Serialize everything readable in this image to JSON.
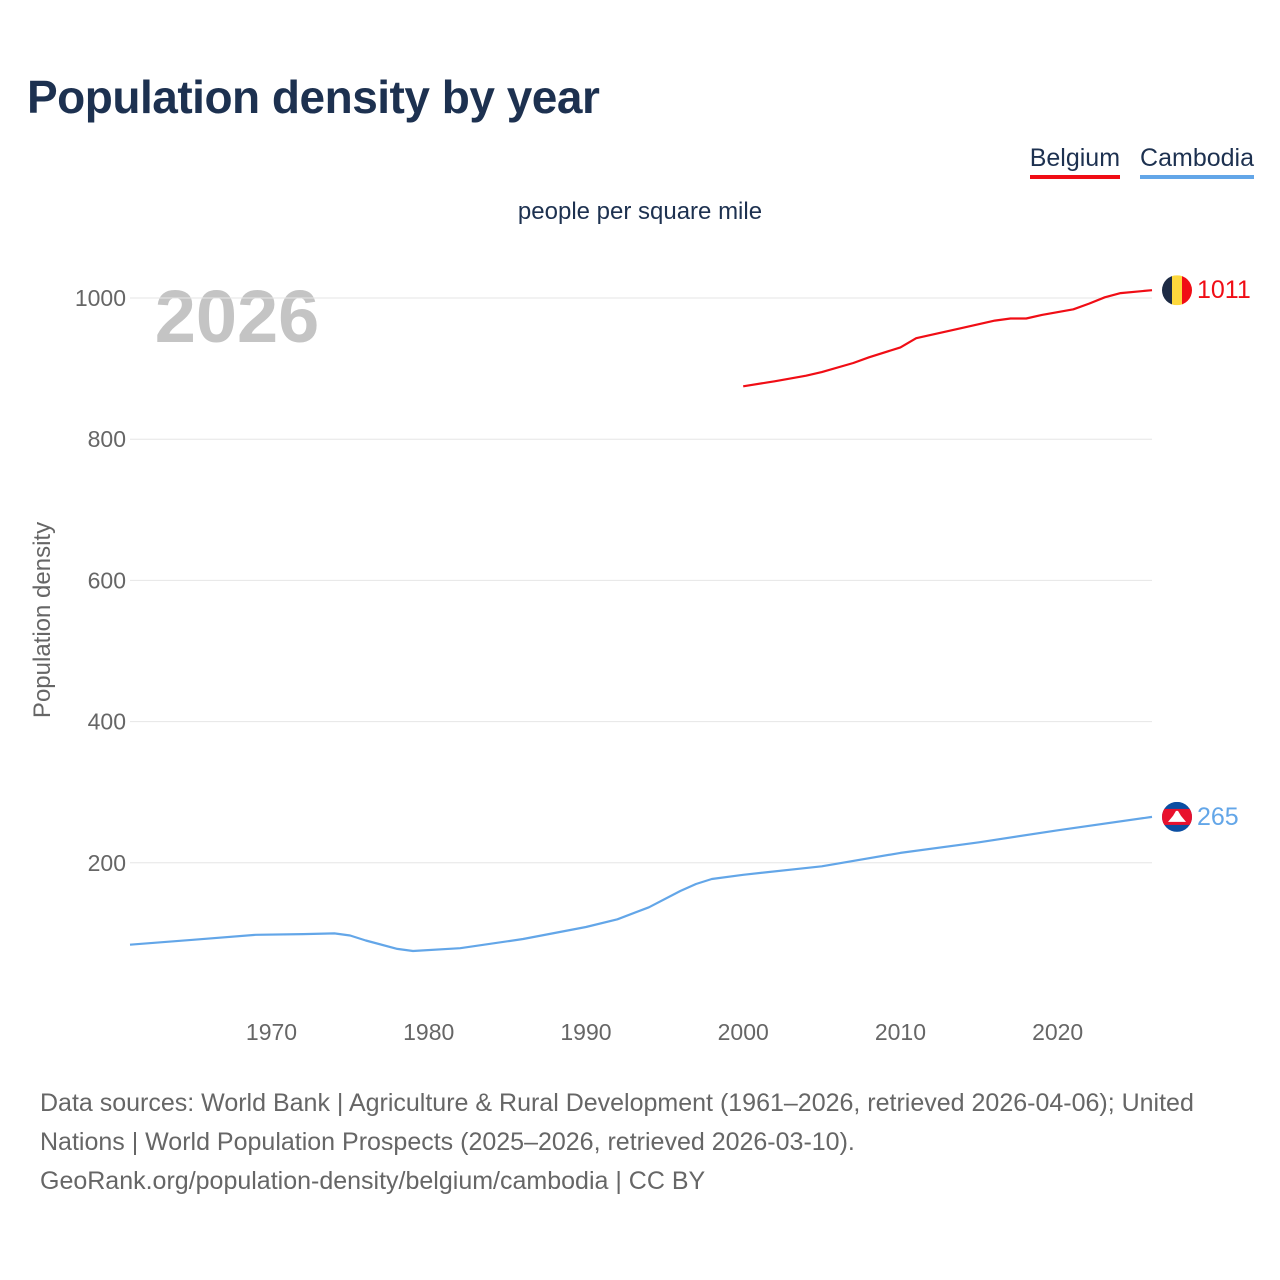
{
  "title": "Population density by year",
  "subtitle": "people per square mile",
  "year_label": "2026",
  "legend": [
    {
      "label": "Belgium",
      "color": "#f00d15"
    },
    {
      "label": "Cambodia",
      "color": "#63a6e8"
    }
  ],
  "footer": {
    "sources": "Data sources: World Bank | Agriculture & Rural Development (1961–2026, retrieved 2026-04-06); United Nations | World Population Prospects (2025–2026, retrieved 2026-03-10).",
    "link": "GeoRank.org/population-density/belgium/cambodia | CC BY"
  },
  "chart_data": {
    "type": "line",
    "title": "Population density by year",
    "ylabel": "Population density",
    "xlabel": "",
    "unit": "people per square mile",
    "xlim": [
      1961,
      2026
    ],
    "ylim": [
      0,
      1000
    ],
    "x_ticks": [
      1970,
      1980,
      1990,
      2000,
      2010,
      2020
    ],
    "y_ticks": [
      200,
      400,
      600,
      800,
      1000
    ],
    "grid": true,
    "legend_position": "top-right",
    "series": [
      {
        "name": "Belgium",
        "color": "#f00d15",
        "end_label": "1011",
        "flag": "belgium-flag-icon",
        "x": [
          2000,
          2002,
          2004,
          2005,
          2007,
          2008,
          2010,
          2011,
          2013,
          2014,
          2016,
          2017,
          2018,
          2019,
          2021,
          2022,
          2023,
          2024,
          2026
        ],
        "y": [
          875,
          882,
          890,
          895,
          908,
          916,
          930,
          943,
          953,
          958,
          968,
          971,
          971,
          976,
          984,
          992,
          1001,
          1007,
          1011
        ]
      },
      {
        "name": "Cambodia",
        "color": "#63a6e8",
        "end_label": "265",
        "flag": "cambodia-flag-icon",
        "x": [
          1961,
          1965,
          1969,
          1972,
          1974,
          1975,
          1976,
          1978,
          1979,
          1982,
          1986,
          1990,
          1992,
          1994,
          1996,
          1997,
          1998,
          2000,
          2005,
          2010,
          2015,
          2020,
          2026
        ],
        "y": [
          84,
          91,
          98,
          99,
          100,
          97,
          90,
          78,
          75,
          79,
          92,
          109,
          120,
          137,
          160,
          170,
          177,
          183,
          195,
          214,
          229,
          246,
          265
        ]
      }
    ]
  }
}
